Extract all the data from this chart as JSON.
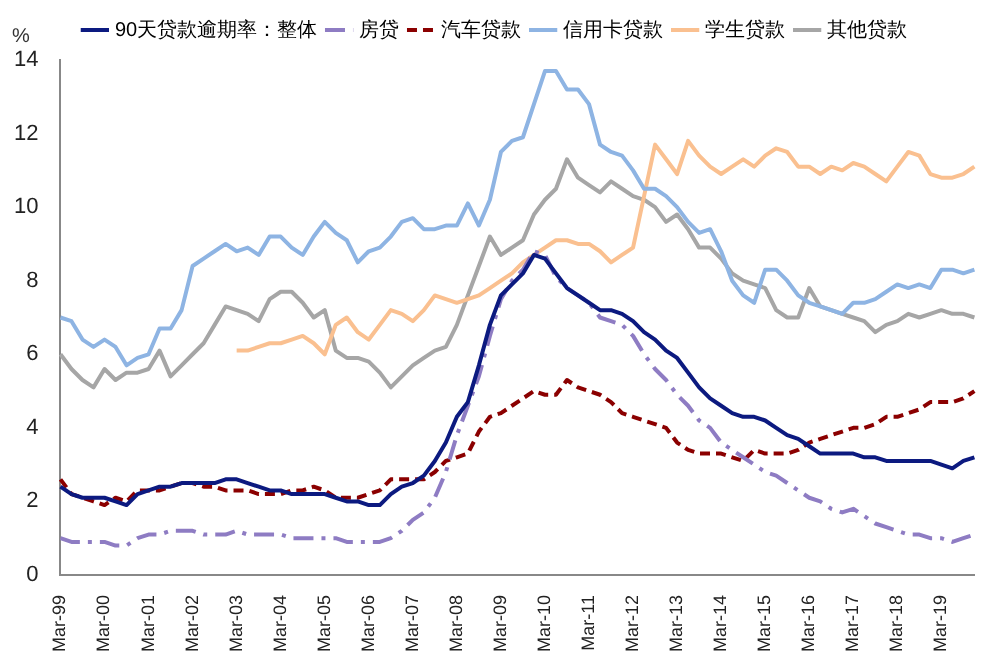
{
  "chart_data": {
    "type": "line",
    "ylabel": "%",
    "categories": [
      "Mar-99",
      null,
      null,
      null,
      "Mar-00",
      null,
      null,
      null,
      "Mar-01",
      null,
      null,
      null,
      "Mar-02",
      null,
      null,
      null,
      "Mar-03",
      null,
      null,
      null,
      "Mar-04",
      null,
      null,
      null,
      "Mar-05",
      null,
      null,
      null,
      "Mar-06",
      null,
      null,
      null,
      "Mar-07",
      null,
      null,
      null,
      "Mar-08",
      null,
      null,
      null,
      "Mar-09",
      null,
      null,
      null,
      "Mar-10",
      null,
      null,
      null,
      "Mar-11",
      null,
      null,
      null,
      "Mar-12",
      null,
      null,
      null,
      "Mar-13",
      null,
      null,
      null,
      "Mar-14",
      null,
      null,
      null,
      "Mar-15",
      null,
      null,
      null,
      "Mar-16",
      null,
      null,
      null,
      "Mar-17",
      null,
      null,
      null,
      "Mar-18",
      null,
      null,
      null,
      "Mar-19",
      null,
      null,
      null
    ],
    "ylim": [
      0,
      14
    ],
    "yticks": [
      0,
      2,
      4,
      6,
      8,
      10,
      12,
      14
    ],
    "grid": false,
    "legend": "top",
    "marker": "none",
    "series": [
      {
        "name": "90天贷款逾期率：整体",
        "color": "#0c1a80",
        "line_style": "solid",
        "values": [
          2.4,
          2.2,
          2.1,
          2.1,
          2.1,
          2.0,
          1.9,
          2.2,
          2.3,
          2.4,
          2.4,
          2.5,
          2.5,
          2.5,
          2.5,
          2.6,
          2.6,
          2.5,
          2.4,
          2.3,
          2.3,
          2.2,
          2.2,
          2.2,
          2.2,
          2.1,
          2.0,
          2.0,
          1.9,
          1.9,
          2.2,
          2.4,
          2.5,
          2.7,
          3.1,
          3.6,
          4.3,
          4.7,
          5.7,
          6.8,
          7.6,
          7.9,
          8.2,
          8.7,
          8.6,
          8.2,
          7.8,
          7.6,
          7.4,
          7.2,
          7.2,
          7.1,
          6.9,
          6.6,
          6.4,
          6.1,
          5.9,
          5.5,
          5.1,
          4.8,
          4.6,
          4.4,
          4.3,
          4.3,
          4.2,
          4.0,
          3.8,
          3.7,
          3.5,
          3.3,
          3.3,
          3.3,
          3.3,
          3.2,
          3.2,
          3.1,
          3.1,
          3.1,
          3.1,
          3.1,
          3.0,
          2.9,
          3.1,
          3.2
        ]
      },
      {
        "name": "房贷",
        "color": "#8e7cc3",
        "line_style": "dashdot",
        "values": [
          1.0,
          0.9,
          0.9,
          0.9,
          0.9,
          0.8,
          0.8,
          1.0,
          1.1,
          1.1,
          1.2,
          1.2,
          1.2,
          1.1,
          1.1,
          1.1,
          1.2,
          1.1,
          1.1,
          1.1,
          1.1,
          1.0,
          1.0,
          1.0,
          1.0,
          1.0,
          0.9,
          0.9,
          0.9,
          0.9,
          1.0,
          1.2,
          1.5,
          1.7,
          2.1,
          2.8,
          3.8,
          4.6,
          5.4,
          6.5,
          7.5,
          8.0,
          8.3,
          8.8,
          8.7,
          8.1,
          7.8,
          7.6,
          7.4,
          7.0,
          6.9,
          6.8,
          6.5,
          6.0,
          5.6,
          5.3,
          4.9,
          4.6,
          4.2,
          4.0,
          3.6,
          3.4,
          3.2,
          3.0,
          2.8,
          2.7,
          2.5,
          2.3,
          2.1,
          2.0,
          1.8,
          1.7,
          1.8,
          1.6,
          1.4,
          1.3,
          1.2,
          1.1,
          1.1,
          1.0,
          1.0,
          0.9,
          1.0,
          1.1
        ]
      },
      {
        "name": "汽车贷款",
        "color": "#8b0000",
        "line_style": "dashed",
        "values": [
          2.6,
          2.2,
          2.1,
          2.0,
          1.9,
          2.1,
          2.0,
          2.3,
          2.3,
          2.3,
          2.4,
          2.5,
          2.5,
          2.4,
          2.4,
          2.3,
          2.3,
          2.3,
          2.2,
          2.2,
          2.2,
          2.3,
          2.3,
          2.4,
          2.3,
          2.1,
          2.1,
          2.1,
          2.2,
          2.3,
          2.6,
          2.6,
          2.6,
          2.6,
          2.8,
          3.1,
          3.2,
          3.3,
          3.9,
          4.3,
          4.4,
          4.6,
          4.8,
          5.0,
          4.9,
          4.9,
          5.3,
          5.1,
          5.0,
          4.9,
          4.7,
          4.4,
          4.3,
          4.2,
          4.1,
          4.0,
          3.6,
          3.4,
          3.3,
          3.3,
          3.3,
          3.2,
          3.1,
          3.4,
          3.3,
          3.3,
          3.3,
          3.4,
          3.6,
          3.7,
          3.8,
          3.9,
          4.0,
          4.0,
          4.1,
          4.3,
          4.3,
          4.4,
          4.5,
          4.7,
          4.7,
          4.7,
          4.8,
          5.0
        ]
      },
      {
        "name": "信用卡贷款",
        "color": "#8eb4e3",
        "line_style": "solid",
        "values": [
          7.0,
          6.9,
          6.4,
          6.2,
          6.4,
          6.2,
          5.7,
          5.9,
          6.0,
          6.7,
          6.7,
          7.2,
          8.4,
          8.6,
          8.8,
          9.0,
          8.8,
          8.9,
          8.7,
          9.2,
          9.2,
          8.9,
          8.7,
          9.2,
          9.6,
          9.3,
          9.1,
          8.5,
          8.8,
          8.9,
          9.2,
          9.6,
          9.7,
          9.4,
          9.4,
          9.5,
          9.5,
          10.1,
          9.5,
          10.2,
          11.5,
          11.8,
          11.9,
          12.8,
          13.7,
          13.7,
          13.2,
          13.2,
          12.8,
          11.7,
          11.5,
          11.4,
          11.0,
          10.5,
          10.5,
          10.3,
          10.0,
          9.6,
          9.3,
          9.4,
          8.8,
          8.0,
          7.6,
          7.4,
          8.3,
          8.3,
          8.0,
          7.6,
          7.4,
          7.3,
          7.2,
          7.1,
          7.4,
          7.4,
          7.5,
          7.7,
          7.9,
          7.8,
          7.9,
          7.8,
          8.3,
          8.3,
          8.2,
          8.3
        ]
      },
      {
        "name": "学生贷款",
        "color": "#fac090",
        "line_style": "solid",
        "values": [
          null,
          null,
          null,
          null,
          null,
          null,
          null,
          null,
          null,
          null,
          null,
          null,
          null,
          null,
          null,
          null,
          6.1,
          6.1,
          6.2,
          6.3,
          6.3,
          6.4,
          6.5,
          6.3,
          6.0,
          6.8,
          7.0,
          6.6,
          6.4,
          6.8,
          7.2,
          7.1,
          6.9,
          7.2,
          7.6,
          7.5,
          7.4,
          7.5,
          7.6,
          7.8,
          8.0,
          8.2,
          8.5,
          8.7,
          8.9,
          9.1,
          9.1,
          9.0,
          9.0,
          8.8,
          8.5,
          8.7,
          8.9,
          10.3,
          11.7,
          11.3,
          10.9,
          11.8,
          11.4,
          11.1,
          10.9,
          11.1,
          11.3,
          11.1,
          11.4,
          11.6,
          11.5,
          11.1,
          11.1,
          10.9,
          11.1,
          11.0,
          11.2,
          11.1,
          10.9,
          10.7,
          11.1,
          11.5,
          11.4,
          10.9,
          10.8,
          10.8,
          10.9,
          11.1
        ]
      },
      {
        "name": "其他贷款",
        "color": "#a6a6a6",
        "line_style": "solid",
        "values": [
          6.0,
          5.6,
          5.3,
          5.1,
          5.6,
          5.3,
          5.5,
          5.5,
          5.6,
          6.1,
          5.4,
          5.7,
          6.0,
          6.3,
          6.8,
          7.3,
          7.2,
          7.1,
          6.9,
          7.5,
          7.7,
          7.7,
          7.4,
          7.0,
          7.2,
          6.1,
          5.9,
          5.9,
          5.8,
          5.5,
          5.1,
          5.4,
          5.7,
          5.9,
          6.1,
          6.2,
          6.8,
          7.6,
          8.4,
          9.2,
          8.7,
          8.9,
          9.1,
          9.8,
          10.2,
          10.5,
          11.3,
          10.8,
          10.6,
          10.4,
          10.7,
          10.5,
          10.3,
          10.2,
          10.0,
          9.6,
          9.8,
          9.4,
          8.9,
          8.9,
          8.6,
          8.2,
          8.0,
          7.9,
          7.8,
          7.2,
          7.0,
          7.0,
          7.8,
          7.3,
          7.2,
          7.1,
          7.0,
          6.9,
          6.6,
          6.8,
          6.9,
          7.1,
          7.0,
          7.1,
          7.2,
          7.1,
          7.1,
          7.0
        ]
      }
    ]
  }
}
